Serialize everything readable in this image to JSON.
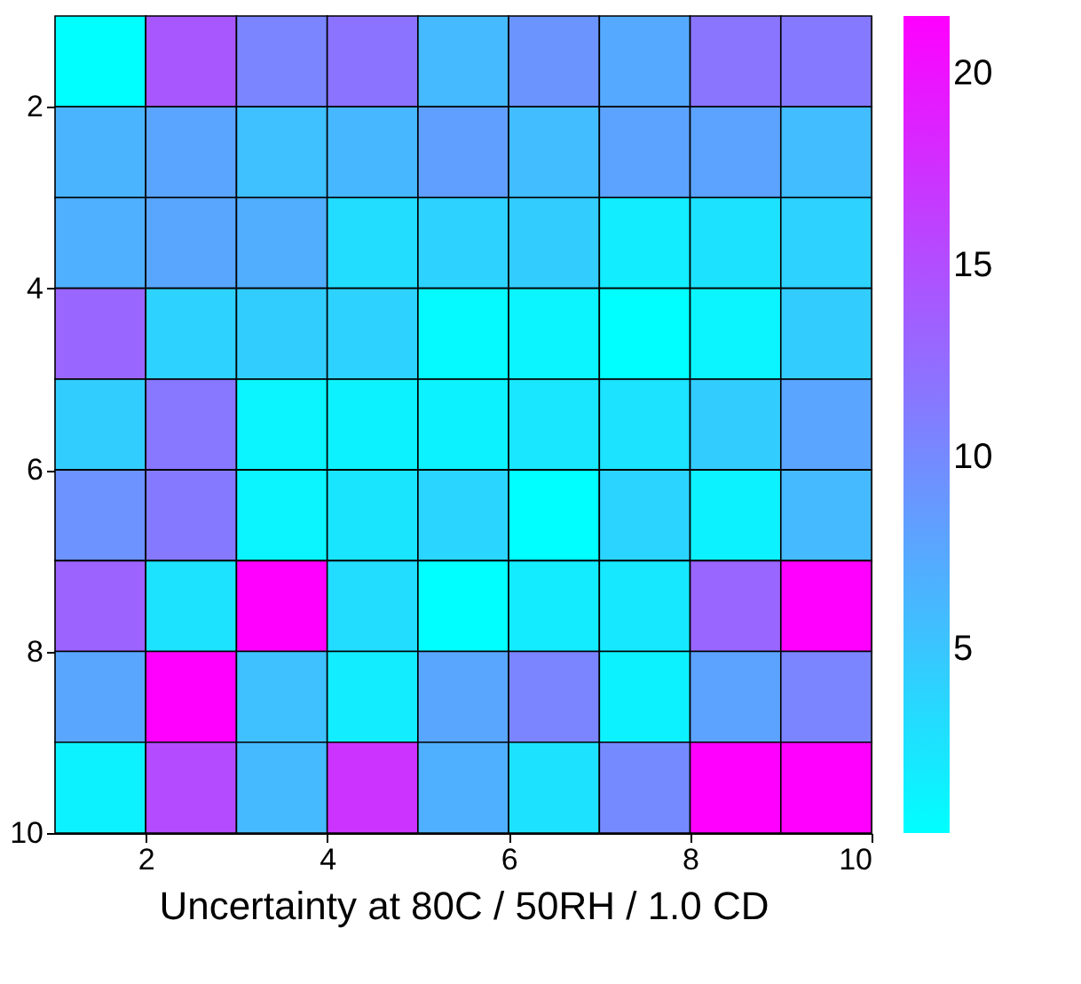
{
  "chart_data": {
    "type": "heatmap",
    "xlabel": "Uncertainty at 80C / 50RH / 1.0 CD",
    "xlim": [
      1,
      10
    ],
    "xticks": [
      2,
      4,
      6,
      8,
      10
    ],
    "ylim": [
      10,
      1
    ],
    "yticks": [
      2,
      4,
      6,
      8,
      10
    ],
    "clim": [
      0.2,
      21.5
    ],
    "cticks": [
      5,
      10,
      15,
      20
    ],
    "colors": [
      "#00ffff",
      "#ff00ff"
    ],
    "cells": [
      [
        0.2,
        14.2,
        10.4,
        11.9,
        6.0,
        9.1,
        7.3,
        11.7,
        11.3
      ],
      [
        6.5,
        7.7,
        5.5,
        6.1,
        8.2,
        5.7,
        7.9,
        7.9,
        5.7
      ],
      [
        6.8,
        7.6,
        7.0,
        3.0,
        4.0,
        4.5,
        1.7,
        2.6,
        4.0
      ],
      [
        13.0,
        4.0,
        4.4,
        4.0,
        0.6,
        1.0,
        0.2,
        1.0,
        4.5
      ],
      [
        4.4,
        11.6,
        1.0,
        1.3,
        1.3,
        2.3,
        2.5,
        4.5,
        7.7
      ],
      [
        9.2,
        11.3,
        1.0,
        2.4,
        3.7,
        0.2,
        3.8,
        1.3,
        6.0
      ],
      [
        13.2,
        2.5,
        21.5,
        3.0,
        0.2,
        1.8,
        2.0,
        13.0,
        21.5
      ],
      [
        7.6,
        21.5,
        5.5,
        1.7,
        7.6,
        10.4,
        1.3,
        7.9,
        10.4
      ],
      [
        1.3,
        15.2,
        6.0,
        17.2,
        6.8,
        2.6,
        10.0,
        21.5,
        21.5
      ]
    ]
  }
}
